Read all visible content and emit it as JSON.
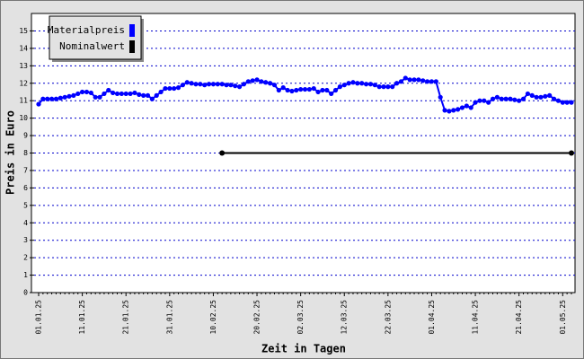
{
  "chart_data": {
    "type": "line",
    "xlabel": "Zeit in Tagen",
    "ylabel": "Preis in Euro",
    "categories": [
      "01.01.25",
      null,
      null,
      null,
      null,
      null,
      null,
      null,
      null,
      null,
      "11.01.25",
      null,
      null,
      null,
      null,
      null,
      null,
      null,
      null,
      null,
      "21.01.25",
      null,
      null,
      null,
      null,
      null,
      null,
      null,
      null,
      null,
      "31.01.25",
      null,
      null,
      null,
      null,
      null,
      null,
      null,
      null,
      null,
      "10.02.25",
      null,
      null,
      null,
      null,
      null,
      null,
      null,
      null,
      null,
      "20.02.25",
      null,
      null,
      null,
      null,
      null,
      null,
      null,
      null,
      null,
      "02.03.25",
      null,
      null,
      null,
      null,
      null,
      null,
      null,
      null,
      null,
      "12.03.25",
      null,
      null,
      null,
      null,
      null,
      null,
      null,
      null,
      null,
      "22.03.25",
      null,
      null,
      null,
      null,
      null,
      null,
      null,
      null,
      null,
      "01.04.25",
      null,
      null,
      null,
      null,
      null,
      null,
      null,
      null,
      null,
      "11.04.25",
      null,
      null,
      null,
      null,
      null,
      null,
      null,
      null,
      null,
      "21.04.25",
      null,
      null,
      null,
      null,
      null,
      null,
      null,
      null,
      null,
      "01.05.25",
      null,
      null
    ],
    "series": [
      {
        "name": "Materialpreis",
        "color": "#0000ff",
        "values": [
          10.8,
          11.1,
          11.1,
          11.1,
          11.1,
          11.15,
          11.2,
          11.25,
          11.3,
          11.4,
          11.5,
          11.5,
          11.45,
          11.2,
          11.2,
          11.4,
          11.6,
          11.45,
          11.4,
          11.4,
          11.4,
          11.4,
          11.45,
          11.35,
          11.3,
          11.3,
          11.1,
          11.3,
          11.5,
          11.7,
          11.7,
          11.7,
          11.75,
          11.9,
          12.05,
          12.0,
          11.95,
          11.95,
          11.9,
          11.95,
          11.95,
          11.95,
          11.95,
          11.9,
          11.9,
          11.85,
          11.8,
          11.95,
          12.1,
          12.15,
          12.2,
          12.1,
          12.05,
          12.0,
          11.9,
          11.6,
          11.75,
          11.6,
          11.55,
          11.6,
          11.65,
          11.65,
          11.65,
          11.7,
          11.5,
          11.6,
          11.6,
          11.4,
          11.6,
          11.8,
          11.9,
          12.0,
          12.05,
          12.0,
          12.0,
          11.95,
          11.95,
          11.9,
          11.8,
          11.8,
          11.8,
          11.8,
          12.0,
          12.1,
          12.3,
          12.2,
          12.2,
          12.2,
          12.15,
          12.1,
          12.1,
          12.1,
          11.2,
          10.45,
          10.4,
          10.45,
          10.5,
          10.6,
          10.7,
          10.6,
          10.9,
          11.0,
          11.0,
          10.9,
          11.1,
          11.2,
          11.1,
          11.1,
          11.1,
          11.05,
          11.0,
          11.1,
          11.4,
          11.3,
          11.2,
          11.2,
          11.25,
          11.3,
          11.1,
          11.0,
          10.9,
          10.9,
          10.9
        ]
      },
      {
        "name": "Nominalwert",
        "color": "#000000",
        "values": [
          null,
          null,
          null,
          null,
          null,
          null,
          null,
          null,
          null,
          null,
          null,
          null,
          null,
          null,
          null,
          null,
          null,
          null,
          null,
          null,
          null,
          null,
          null,
          null,
          null,
          null,
          null,
          null,
          null,
          null,
          null,
          null,
          null,
          null,
          null,
          null,
          null,
          null,
          null,
          null,
          null,
          null,
          8,
          8,
          8,
          8,
          8,
          8,
          8,
          8,
          8,
          8,
          8,
          8,
          8,
          8,
          8,
          8,
          8,
          8,
          8,
          8,
          8,
          8,
          8,
          8,
          8,
          8,
          8,
          8,
          8,
          8,
          8,
          8,
          8,
          8,
          8,
          8,
          8,
          8,
          8,
          8,
          8,
          8,
          8,
          8,
          8,
          8,
          8,
          8,
          8,
          8,
          8,
          8,
          8,
          8,
          8,
          8,
          8,
          8,
          8,
          8,
          8,
          8,
          8,
          8,
          8,
          8,
          8,
          8,
          8,
          8,
          8,
          8,
          8,
          8,
          8,
          8,
          8,
          8,
          8,
          8,
          8
        ]
      }
    ],
    "ylim": [
      0,
      16
    ],
    "yticks": [
      0,
      1,
      2,
      3,
      4,
      5,
      6,
      7,
      8,
      9,
      10,
      11,
      12,
      13,
      14,
      15
    ],
    "grid": true,
    "legend": "upper left"
  }
}
